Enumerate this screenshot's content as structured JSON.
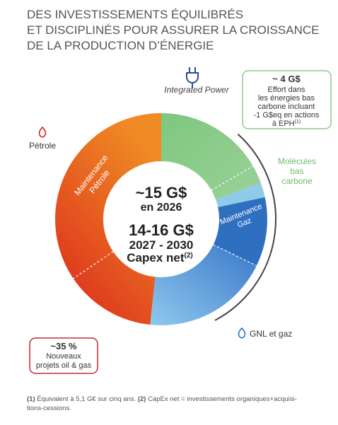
{
  "header": {
    "title_lines": [
      "DES INVESTISSEMENTS ÉQUILIBRÉS",
      "ET DISCIPLINÉS POUR ASSURER LA CROISSANCE",
      "DE LA PRODUCTION D’ÉNERGIE"
    ]
  },
  "center": {
    "value_2026": "~15 G$",
    "label_2026": "en 2026",
    "value_range": "14-16 G$",
    "period": "2027 - 2030",
    "capex": "Capex net",
    "capex_note": "(2)"
  },
  "segments": {
    "integrated_power": "Integrated Power",
    "molecules": [
      "Molécules",
      "bas",
      "carbone"
    ],
    "maintenance_gaz": [
      "Maintenance",
      "Gaz"
    ],
    "gnl": "GNL et gaz",
    "petrole": "Pétrole",
    "maintenance_petrole": [
      "Maintenance",
      "Pétrole"
    ]
  },
  "callouts": {
    "low_carbon": {
      "amount": "~ 4 G$",
      "lines": [
        "Effort dans",
        "les énergies bas",
        "carbone incluant",
        "-1 G$eq en actions",
        "à EPH"
      ],
      "note": "(1)"
    },
    "new_projects": {
      "share": "~35 %",
      "lines": [
        "Nouveaux",
        "projets oil & gas"
      ]
    }
  },
  "footnotes": {
    "note1_mark": "(1)",
    "note1_text": " Équivalent à 5,1 G€ sur cinq ans. ",
    "note2_mark": "(2)",
    "note2_text": " CapEx net = investissements organiques+acquisi-",
    "note2_cont": "tions-cessions."
  }
}
